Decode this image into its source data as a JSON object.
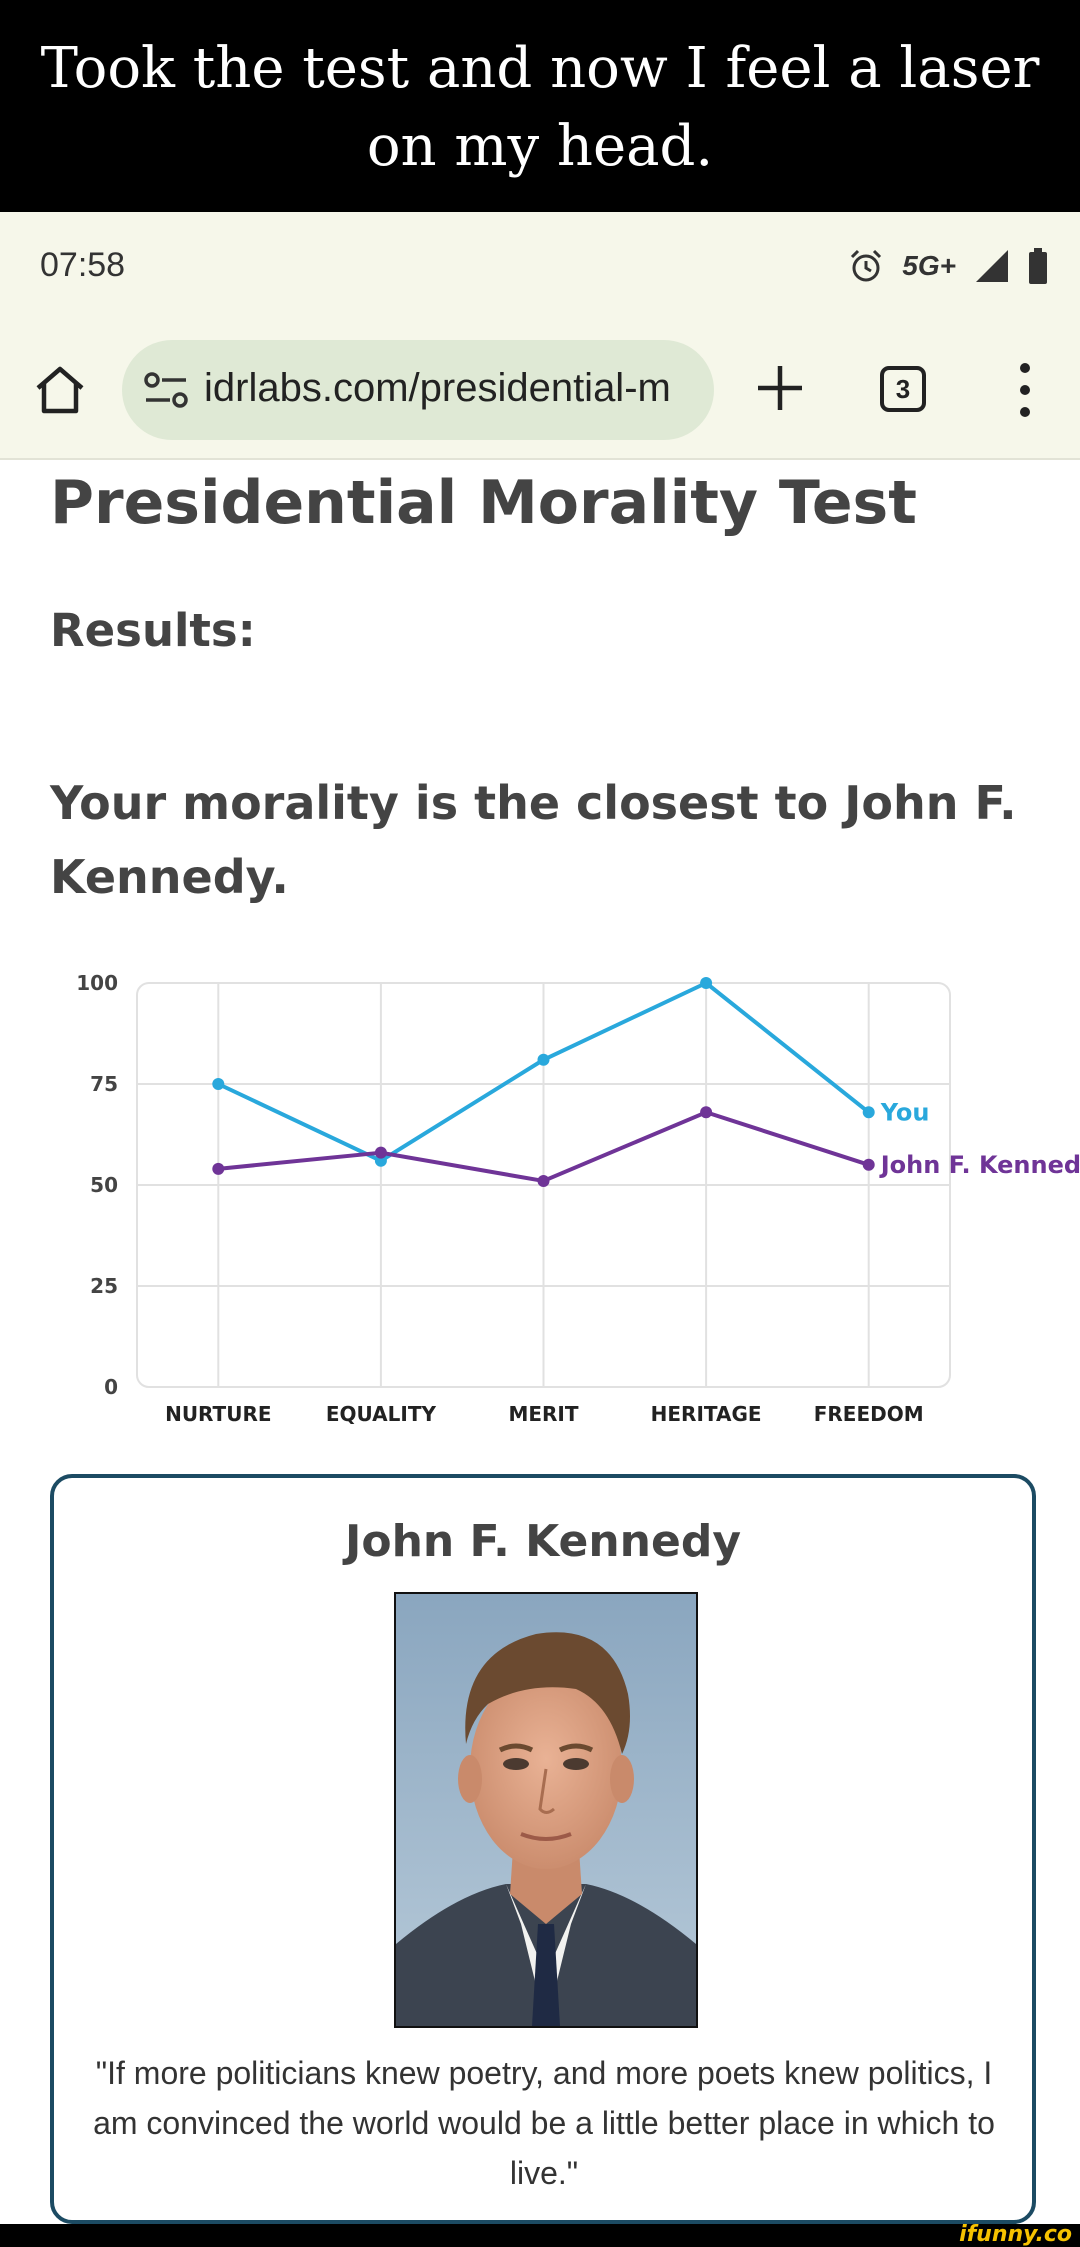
{
  "caption": {
    "line1": "Took the test and now I feel a laser",
    "line2": "on my head."
  },
  "status_bar": {
    "time": "07:58",
    "network": "5G+",
    "icons": [
      "alarm-icon",
      "signal-icon",
      "battery-icon"
    ]
  },
  "browser": {
    "url": "idrlabs.com/presidential-m",
    "tab_count": "3",
    "icons": [
      "home-icon",
      "tune-icon",
      "plus-icon",
      "tabs-icon",
      "more-vert-icon"
    ],
    "url_pill_color": "#dfe9d5",
    "bar_color": "#f6f7ea"
  },
  "page": {
    "title": "Presidential Morality Test",
    "results_label": "Results:",
    "closest_line1": "Your morality is the closest to John F.",
    "closest_line2": "Kennedy."
  },
  "chart_data": {
    "type": "line",
    "categories": [
      "NURTURE",
      "EQUALITY",
      "MERIT",
      "HERITAGE",
      "FREEDOM"
    ],
    "yticks": [
      0,
      25,
      50,
      75,
      100
    ],
    "ylim": [
      0,
      100
    ],
    "grid": true,
    "series": [
      {
        "name": "You",
        "values": [
          75,
          56,
          81,
          100,
          68
        ],
        "color": "#29a8dc"
      },
      {
        "name": "John F. Kennedy",
        "values": [
          54,
          58,
          51,
          68,
          55
        ],
        "color": "#6f3497"
      }
    ]
  },
  "card": {
    "name": "John F. Kennedy",
    "portrait": "portrait-photo",
    "quote": "\"If more politicians knew poetry, and more poets knew politics, I am convinced the world would be a little better place in which to live.\"",
    "border_color": "#1c4b63"
  },
  "watermark": "ifunny.co"
}
